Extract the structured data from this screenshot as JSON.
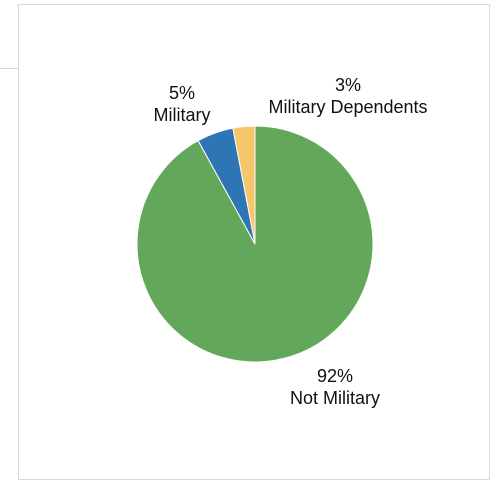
{
  "chart_data": {
    "type": "pie",
    "title": "",
    "slices": [
      {
        "label": "Not Military",
        "value": 92,
        "percent_label": "92%",
        "color": "#63a85a"
      },
      {
        "label": "Military",
        "value": 5,
        "percent_label": "5%",
        "color": "#2e75b6"
      },
      {
        "label": "Military Dependents",
        "value": 3,
        "percent_label": "3%",
        "color": "#f5c76a"
      }
    ],
    "legend": "none",
    "start": "top",
    "direction": "counter-clockwise"
  }
}
